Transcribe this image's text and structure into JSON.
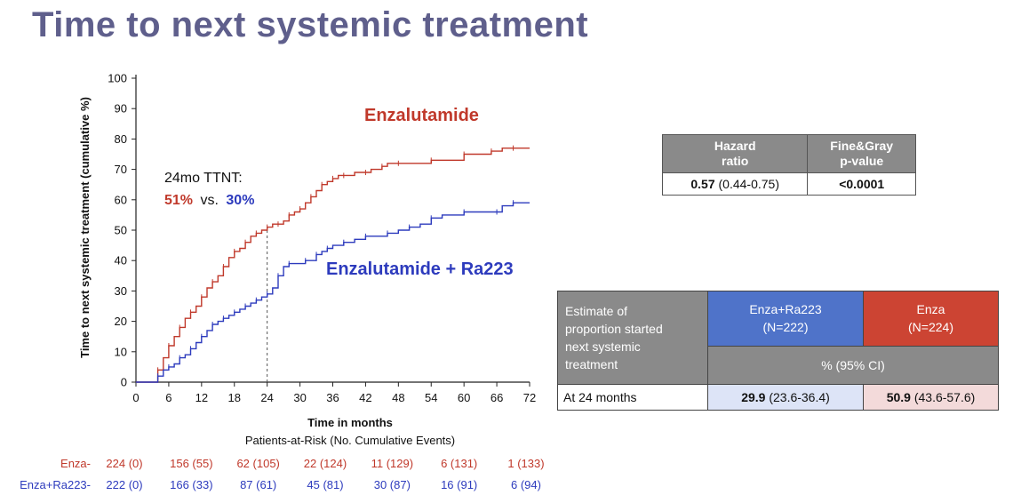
{
  "slide": {
    "title": "Time to next systemic treatment"
  },
  "chart_data": {
    "type": "line",
    "ylabel": "Time to next systemic treatment (cumulative %)",
    "xlabel": "Time in months",
    "ylim": [
      0,
      100
    ],
    "xlim": [
      0,
      72
    ],
    "x_ticks": [
      0,
      6,
      12,
      18,
      24,
      30,
      36,
      42,
      48,
      54,
      60,
      66,
      72
    ],
    "y_ticks": [
      0,
      10,
      20,
      30,
      40,
      50,
      60,
      70,
      80,
      90,
      100
    ],
    "grid": false,
    "colors": {
      "enza": "#c0392b",
      "enzara": "#2d3bbd"
    },
    "series": [
      {
        "name": "Enzalutamide",
        "points": [
          [
            0,
            0
          ],
          [
            3,
            0
          ],
          [
            4,
            4
          ],
          [
            5,
            8
          ],
          [
            6,
            12
          ],
          [
            7,
            15
          ],
          [
            8,
            18
          ],
          [
            9,
            21
          ],
          [
            10,
            23
          ],
          [
            11,
            25
          ],
          [
            12,
            28
          ],
          [
            13,
            31
          ],
          [
            14,
            33
          ],
          [
            15,
            35
          ],
          [
            16,
            38
          ],
          [
            17,
            41
          ],
          [
            18,
            43
          ],
          [
            19,
            44
          ],
          [
            20,
            46
          ],
          [
            21,
            48
          ],
          [
            22,
            49
          ],
          [
            23,
            50
          ],
          [
            24,
            51
          ],
          [
            25,
            52
          ],
          [
            26,
            52
          ],
          [
            27,
            53
          ],
          [
            28,
            55
          ],
          [
            29,
            56
          ],
          [
            30,
            57
          ],
          [
            31,
            59
          ],
          [
            32,
            61
          ],
          [
            33,
            63
          ],
          [
            34,
            65
          ],
          [
            35,
            66
          ],
          [
            36,
            67
          ],
          [
            37,
            68
          ],
          [
            38,
            68
          ],
          [
            40,
            69
          ],
          [
            42,
            69
          ],
          [
            43,
            70
          ],
          [
            45,
            71
          ],
          [
            46,
            72
          ],
          [
            48,
            72
          ],
          [
            52,
            72
          ],
          [
            54,
            73
          ],
          [
            58,
            73
          ],
          [
            60,
            75
          ],
          [
            63,
            75
          ],
          [
            65,
            76
          ],
          [
            67,
            77
          ],
          [
            69,
            77
          ],
          [
            72,
            77
          ]
        ]
      },
      {
        "name": "Enzalutamide + Ra223",
        "points": [
          [
            0,
            0
          ],
          [
            3,
            0
          ],
          [
            4,
            2
          ],
          [
            5,
            4
          ],
          [
            6,
            5
          ],
          [
            7,
            6
          ],
          [
            8,
            8
          ],
          [
            9,
            9
          ],
          [
            10,
            11
          ],
          [
            11,
            13
          ],
          [
            12,
            15
          ],
          [
            13,
            17
          ],
          [
            14,
            19
          ],
          [
            15,
            20
          ],
          [
            16,
            21
          ],
          [
            17,
            22
          ],
          [
            18,
            23
          ],
          [
            19,
            24
          ],
          [
            20,
            25
          ],
          [
            21,
            26
          ],
          [
            22,
            27
          ],
          [
            23,
            28
          ],
          [
            24,
            29
          ],
          [
            25,
            31
          ],
          [
            26,
            35
          ],
          [
            27,
            38
          ],
          [
            28,
            39
          ],
          [
            30,
            39
          ],
          [
            31,
            40
          ],
          [
            32,
            40
          ],
          [
            33,
            42
          ],
          [
            34,
            43
          ],
          [
            35,
            44
          ],
          [
            36,
            45
          ],
          [
            38,
            46
          ],
          [
            40,
            47
          ],
          [
            42,
            48
          ],
          [
            44,
            48
          ],
          [
            46,
            49
          ],
          [
            48,
            50
          ],
          [
            50,
            51
          ],
          [
            52,
            52
          ],
          [
            54,
            54
          ],
          [
            56,
            55
          ],
          [
            60,
            56
          ],
          [
            64,
            56
          ],
          [
            66,
            56
          ],
          [
            67,
            58
          ],
          [
            69,
            59
          ],
          [
            72,
            59
          ]
        ]
      }
    ],
    "series_labels": [
      "Enzalutamide",
      "Enzalutamide + Ra223"
    ],
    "annotation": {
      "line1": "24mo TTNT:",
      "pct_enza": "51%",
      "vs": "vs.",
      "pct_enzara": "30%",
      "marker_x": 24
    },
    "at_risk": {
      "title": "Patients-at-Risk (No. Cumulative Events)",
      "times": [
        0,
        12,
        24,
        36,
        48,
        60,
        72
      ],
      "rows": [
        {
          "label": "Enza-",
          "values": [
            "224 (0)",
            "156 (55)",
            "62 (105)",
            "22 (124)",
            "11 (129)",
            "6 (131)",
            "1 (133)"
          ]
        },
        {
          "label": "Enza+Ra223-",
          "values": [
            "222 (0)",
            "166 (33)",
            "87 (61)",
            "45 (81)",
            "30 (87)",
            "16 (91)",
            "6 (94)"
          ]
        }
      ]
    }
  },
  "hazard_table": {
    "col1_line1": "Hazard",
    "col1_line2": "ratio",
    "col2_line1": "Fine&Gray",
    "col2_line2": "p-value",
    "hr_value": "0.57",
    "hr_ci": "(0.44-0.75)",
    "p_value": "<0.0001"
  },
  "estimate_table": {
    "label_lines": [
      "Estimate of",
      "proportion started",
      "next systemic",
      "treatment"
    ],
    "col_a_line1": "Enza+Ra223",
    "col_a_line2": "(N=222)",
    "col_b_line1": "Enza",
    "col_b_line2": "(N=224)",
    "ci_header": "% (95% CI)",
    "row_label": "At 24 months",
    "val_a": "29.9",
    "ci_a": "(23.6-36.4)",
    "val_b": "50.9",
    "ci_b": "(43.6-57.6)"
  }
}
